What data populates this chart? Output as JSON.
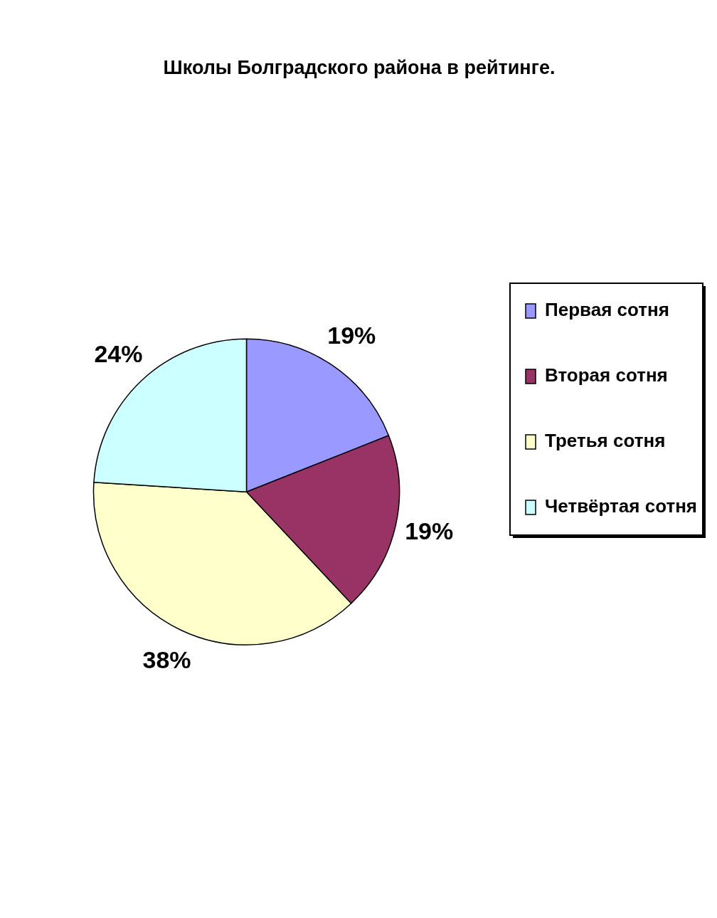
{
  "chart_data": {
    "type": "pie",
    "title": "Школы Болградского района в рейтинге.",
    "categories": [
      "Первая сотня",
      "Вторая сотня",
      "Третья сотня",
      "Четвёртая сотня"
    ],
    "values": [
      19,
      19,
      38,
      24
    ],
    "colors": [
      "#9999ff",
      "#993366",
      "#ffffcc",
      "#ccffff"
    ],
    "value_labels": [
      "19%",
      "19%",
      "38%",
      "24%"
    ],
    "legend": "right"
  }
}
